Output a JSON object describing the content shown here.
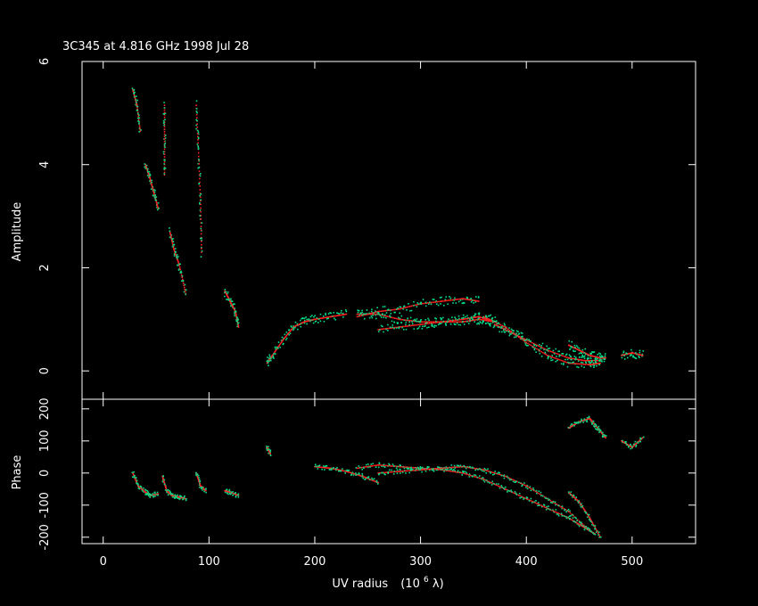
{
  "chart_data": {
    "type": "scatter",
    "title": "3C345 at 4.816 GHz 1998 Jul 28",
    "xlabel_main": "UV radius",
    "xlabel_unit_open": "(10",
    "xlabel_unit_exp": "6",
    "xlabel_unit_close": " λ)",
    "xlim": [
      -20,
      560
    ],
    "x_ticks": [
      0,
      100,
      200,
      300,
      400,
      500
    ],
    "panels": [
      {
        "name": "amplitude",
        "ylabel": "Amplitude",
        "ylim": [
          -0.55,
          6.0
        ],
        "y_ticks": [
          0,
          2,
          4,
          6
        ]
      },
      {
        "name": "phase",
        "ylabel": "Phase",
        "ylim": [
          -220,
          230
        ],
        "y_ticks": [
          -200,
          -100,
          0,
          100,
          200
        ]
      }
    ],
    "colors": {
      "observed": "#00e08a",
      "model": "#ff2020"
    },
    "amplitude_tracks": [
      {
        "x": [
          28,
          32,
          35
        ],
        "y": [
          5.45,
          5.15,
          4.65
        ]
      },
      {
        "x": [
          40,
          44,
          48,
          52
        ],
        "y": [
          4.0,
          3.75,
          3.45,
          3.15
        ]
      },
      {
        "x": [
          58,
          58,
          58
        ],
        "y": [
          5.15,
          4.5,
          3.8
        ]
      },
      {
        "x": [
          63,
          67,
          72,
          78
        ],
        "y": [
          2.7,
          2.35,
          2.05,
          1.5
        ]
      },
      {
        "x": [
          88,
          90,
          92,
          93
        ],
        "y": [
          5.15,
          4.3,
          3.3,
          2.3
        ]
      },
      {
        "x": [
          115,
          120,
          125,
          128
        ],
        "y": [
          1.55,
          1.35,
          1.15,
          0.85
        ]
      },
      {
        "x": [
          155,
          160,
          170,
          180,
          190,
          200,
          215,
          230
        ],
        "y": [
          0.15,
          0.3,
          0.6,
          0.85,
          0.95,
          1.0,
          1.05,
          1.1
        ]
      },
      {
        "x": [
          240,
          260,
          280,
          300,
          320,
          340,
          355,
          370
        ],
        "y": [
          1.1,
          1.1,
          1.0,
          0.95,
          0.95,
          0.95,
          1.0,
          0.95
        ]
      },
      {
        "x": [
          240,
          260,
          280,
          300,
          320,
          340,
          355
        ],
        "y": [
          1.05,
          1.15,
          1.2,
          1.3,
          1.35,
          1.4,
          1.35
        ]
      },
      {
        "x": [
          260,
          280,
          300,
          320,
          340,
          355,
          370
        ],
        "y": [
          0.8,
          0.85,
          0.9,
          0.95,
          1.0,
          1.05,
          0.95
        ]
      },
      {
        "x": [
          370,
          385,
          400,
          420,
          440,
          455,
          470
        ],
        "y": [
          0.9,
          0.75,
          0.6,
          0.4,
          0.25,
          0.2,
          0.2
        ]
      },
      {
        "x": [
          360,
          380,
          400,
          420,
          440,
          460,
          470
        ],
        "y": [
          1.05,
          0.85,
          0.55,
          0.3,
          0.15,
          0.12,
          0.15
        ]
      },
      {
        "x": [
          440,
          450,
          460,
          470,
          475
        ],
        "y": [
          0.5,
          0.4,
          0.3,
          0.25,
          0.25
        ]
      },
      {
        "x": [
          490,
          500,
          510
        ],
        "y": [
          0.3,
          0.35,
          0.3
        ]
      }
    ],
    "phase_tracks": [
      {
        "x": [
          28,
          33,
          40,
          45,
          52
        ],
        "y": [
          0,
          -40,
          -60,
          -70,
          -65
        ]
      },
      {
        "x": [
          56,
          60,
          65,
          72,
          78
        ],
        "y": [
          -10,
          -55,
          -70,
          -75,
          -80
        ]
      },
      {
        "x": [
          88,
          92,
          97
        ],
        "y": [
          0,
          -40,
          -55
        ]
      },
      {
        "x": [
          115,
          120,
          128
        ],
        "y": [
          -55,
          -60,
          -70
        ]
      },
      {
        "x": [
          155,
          158
        ],
        "y": [
          80,
          60
        ]
      },
      {
        "x": [
          200,
          215,
          230,
          245,
          260
        ],
        "y": [
          20,
          15,
          5,
          -10,
          -30
        ]
      },
      {
        "x": [
          240,
          260,
          280,
          300,
          320,
          340,
          360,
          380,
          400,
          420,
          440,
          455,
          465
        ],
        "y": [
          15,
          25,
          20,
          15,
          10,
          0,
          -20,
          -50,
          -80,
          -110,
          -140,
          -170,
          -190
        ]
      },
      {
        "x": [
          260,
          280,
          300,
          320,
          340,
          360,
          380,
          400,
          420,
          440,
          460
        ],
        "y": [
          0,
          5,
          10,
          15,
          20,
          10,
          -10,
          -40,
          -80,
          -120,
          -180
        ]
      },
      {
        "x": [
          440,
          450,
          460,
          465,
          470,
          475
        ],
        "y": [
          140,
          160,
          170,
          150,
          130,
          110
        ]
      },
      {
        "x": [
          440,
          450,
          460,
          470
        ],
        "y": [
          -60,
          -90,
          -140,
          -200
        ]
      },
      {
        "x": [
          490,
          500,
          510
        ],
        "y": [
          100,
          80,
          110
        ]
      }
    ]
  }
}
